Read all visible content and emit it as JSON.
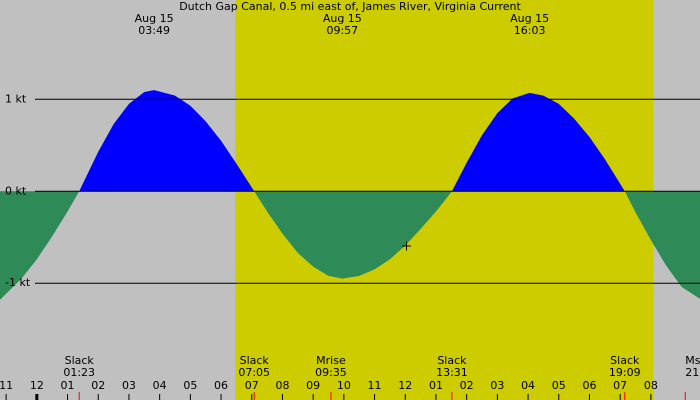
{
  "chart_data": {
    "type": "current",
    "title": "Dutch Gap Canal, 0.5 mi east of, James River, Virginia Current",
    "x": [
      -1.2,
      -0.5,
      0,
      0.5,
      1,
      1.38,
      2,
      2.5,
      3,
      3.5,
      3.82,
      4.5,
      5,
      5.5,
      6,
      6.5,
      7.08,
      7.5,
      8,
      8.5,
      9,
      9.5,
      9.95,
      10.5,
      11,
      11.5,
      12,
      12.5,
      13,
      13.52,
      14,
      14.5,
      15,
      15.5,
      16.05,
      16.5,
      17,
      17.5,
      18,
      18.5,
      19.15,
      19.5,
      20,
      20.5,
      21,
      21.6
    ],
    "values": [
      -1.18,
      -0.95,
      -0.74,
      -0.49,
      -0.22,
      0,
      0.43,
      0.73,
      0.95,
      1.08,
      1.1,
      1.04,
      0.93,
      0.76,
      0.55,
      0.3,
      0,
      -0.22,
      -0.46,
      -0.67,
      -0.82,
      -0.92,
      -0.95,
      -0.92,
      -0.85,
      -0.74,
      -0.59,
      -0.41,
      -0.22,
      0,
      0.31,
      0.61,
      0.85,
      1.01,
      1.07,
      1.04,
      0.95,
      0.79,
      0.59,
      0.35,
      0,
      -0.23,
      -0.53,
      -0.81,
      -1.04,
      -1.17
    ],
    "flood_color": "#0000ff",
    "ebb_color": "#2e8b57",
    "daylight": [
      6.46,
      20.08
    ],
    "daylight_color": "#cccc00",
    "night_color": "#c0c0c0",
    "xlim": [
      -1.2,
      21.6
    ],
    "ylim": [
      -2.27,
      2.08
    ],
    "xticks": [
      {
        "value": -1,
        "label": "11"
      },
      {
        "value": 0,
        "label": "12"
      },
      {
        "value": 1,
        "label": "01"
      },
      {
        "value": 2,
        "label": "02"
      },
      {
        "value": 3,
        "label": "03"
      },
      {
        "value": 4,
        "label": "04"
      },
      {
        "value": 5,
        "label": "05"
      },
      {
        "value": 6,
        "label": "06"
      },
      {
        "value": 7,
        "label": "07"
      },
      {
        "value": 8,
        "label": "08"
      },
      {
        "value": 9,
        "label": "09"
      },
      {
        "value": 10,
        "label": "10"
      },
      {
        "value": 11,
        "label": "11"
      },
      {
        "value": 12,
        "label": "12"
      },
      {
        "value": 13,
        "label": "01"
      },
      {
        "value": 14,
        "label": "02"
      },
      {
        "value": 15,
        "label": "03"
      },
      {
        "value": 16,
        "label": "04"
      },
      {
        "value": 17,
        "label": "05"
      },
      {
        "value": 18,
        "label": "06"
      },
      {
        "value": 19,
        "label": "07"
      },
      {
        "value": 20,
        "label": "08"
      }
    ],
    "yticks": [
      {
        "value": 1,
        "label": "1 kt"
      },
      {
        "value": 0,
        "label": "0 kt"
      },
      {
        "value": -1,
        "label": "-1 kt"
      }
    ],
    "peaks": [
      {
        "date": "Aug 15",
        "time": "03:49",
        "x": 3.82
      },
      {
        "date": "Aug 15",
        "time": "09:57",
        "x": 9.95
      },
      {
        "date": "Aug 15",
        "time": "16:03",
        "x": 16.05
      }
    ],
    "events": [
      {
        "name": "Slack",
        "time": "01:23",
        "x": 1.38
      },
      {
        "name": "Slack",
        "time": "07:05",
        "x": 7.08
      },
      {
        "name": "Mrise",
        "time": "09:35",
        "x": 9.58
      },
      {
        "name": "Slack",
        "time": "13:31",
        "x": 13.52
      },
      {
        "name": "Slack",
        "time": "19:09",
        "x": 19.15
      },
      {
        "name": "Ms",
        "time": "21",
        "x": 21.12
      }
    ]
  }
}
